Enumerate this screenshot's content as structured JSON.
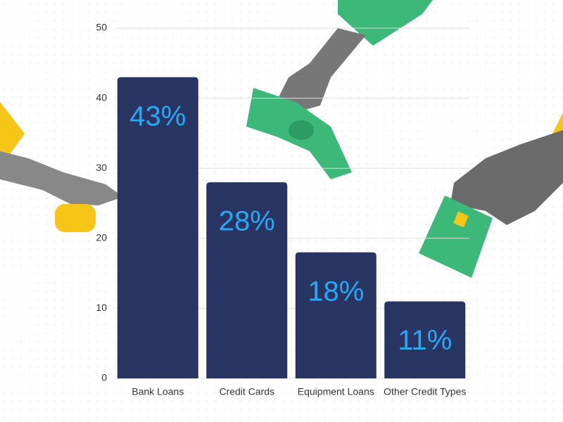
{
  "chart_data": {
    "type": "bar",
    "categories": [
      "Bank Loans",
      "Credit Cards",
      "Equipment Loans",
      "Other Credit Types"
    ],
    "values": [
      43,
      28,
      18,
      11
    ],
    "value_labels": [
      "43%",
      "28%",
      "18%",
      "11%"
    ],
    "color": "#283462",
    "label_color": "#29a8f5",
    "ylim": [
      0,
      50
    ],
    "yticks": [
      0,
      10,
      20,
      30,
      40,
      50
    ],
    "grid": true
  }
}
